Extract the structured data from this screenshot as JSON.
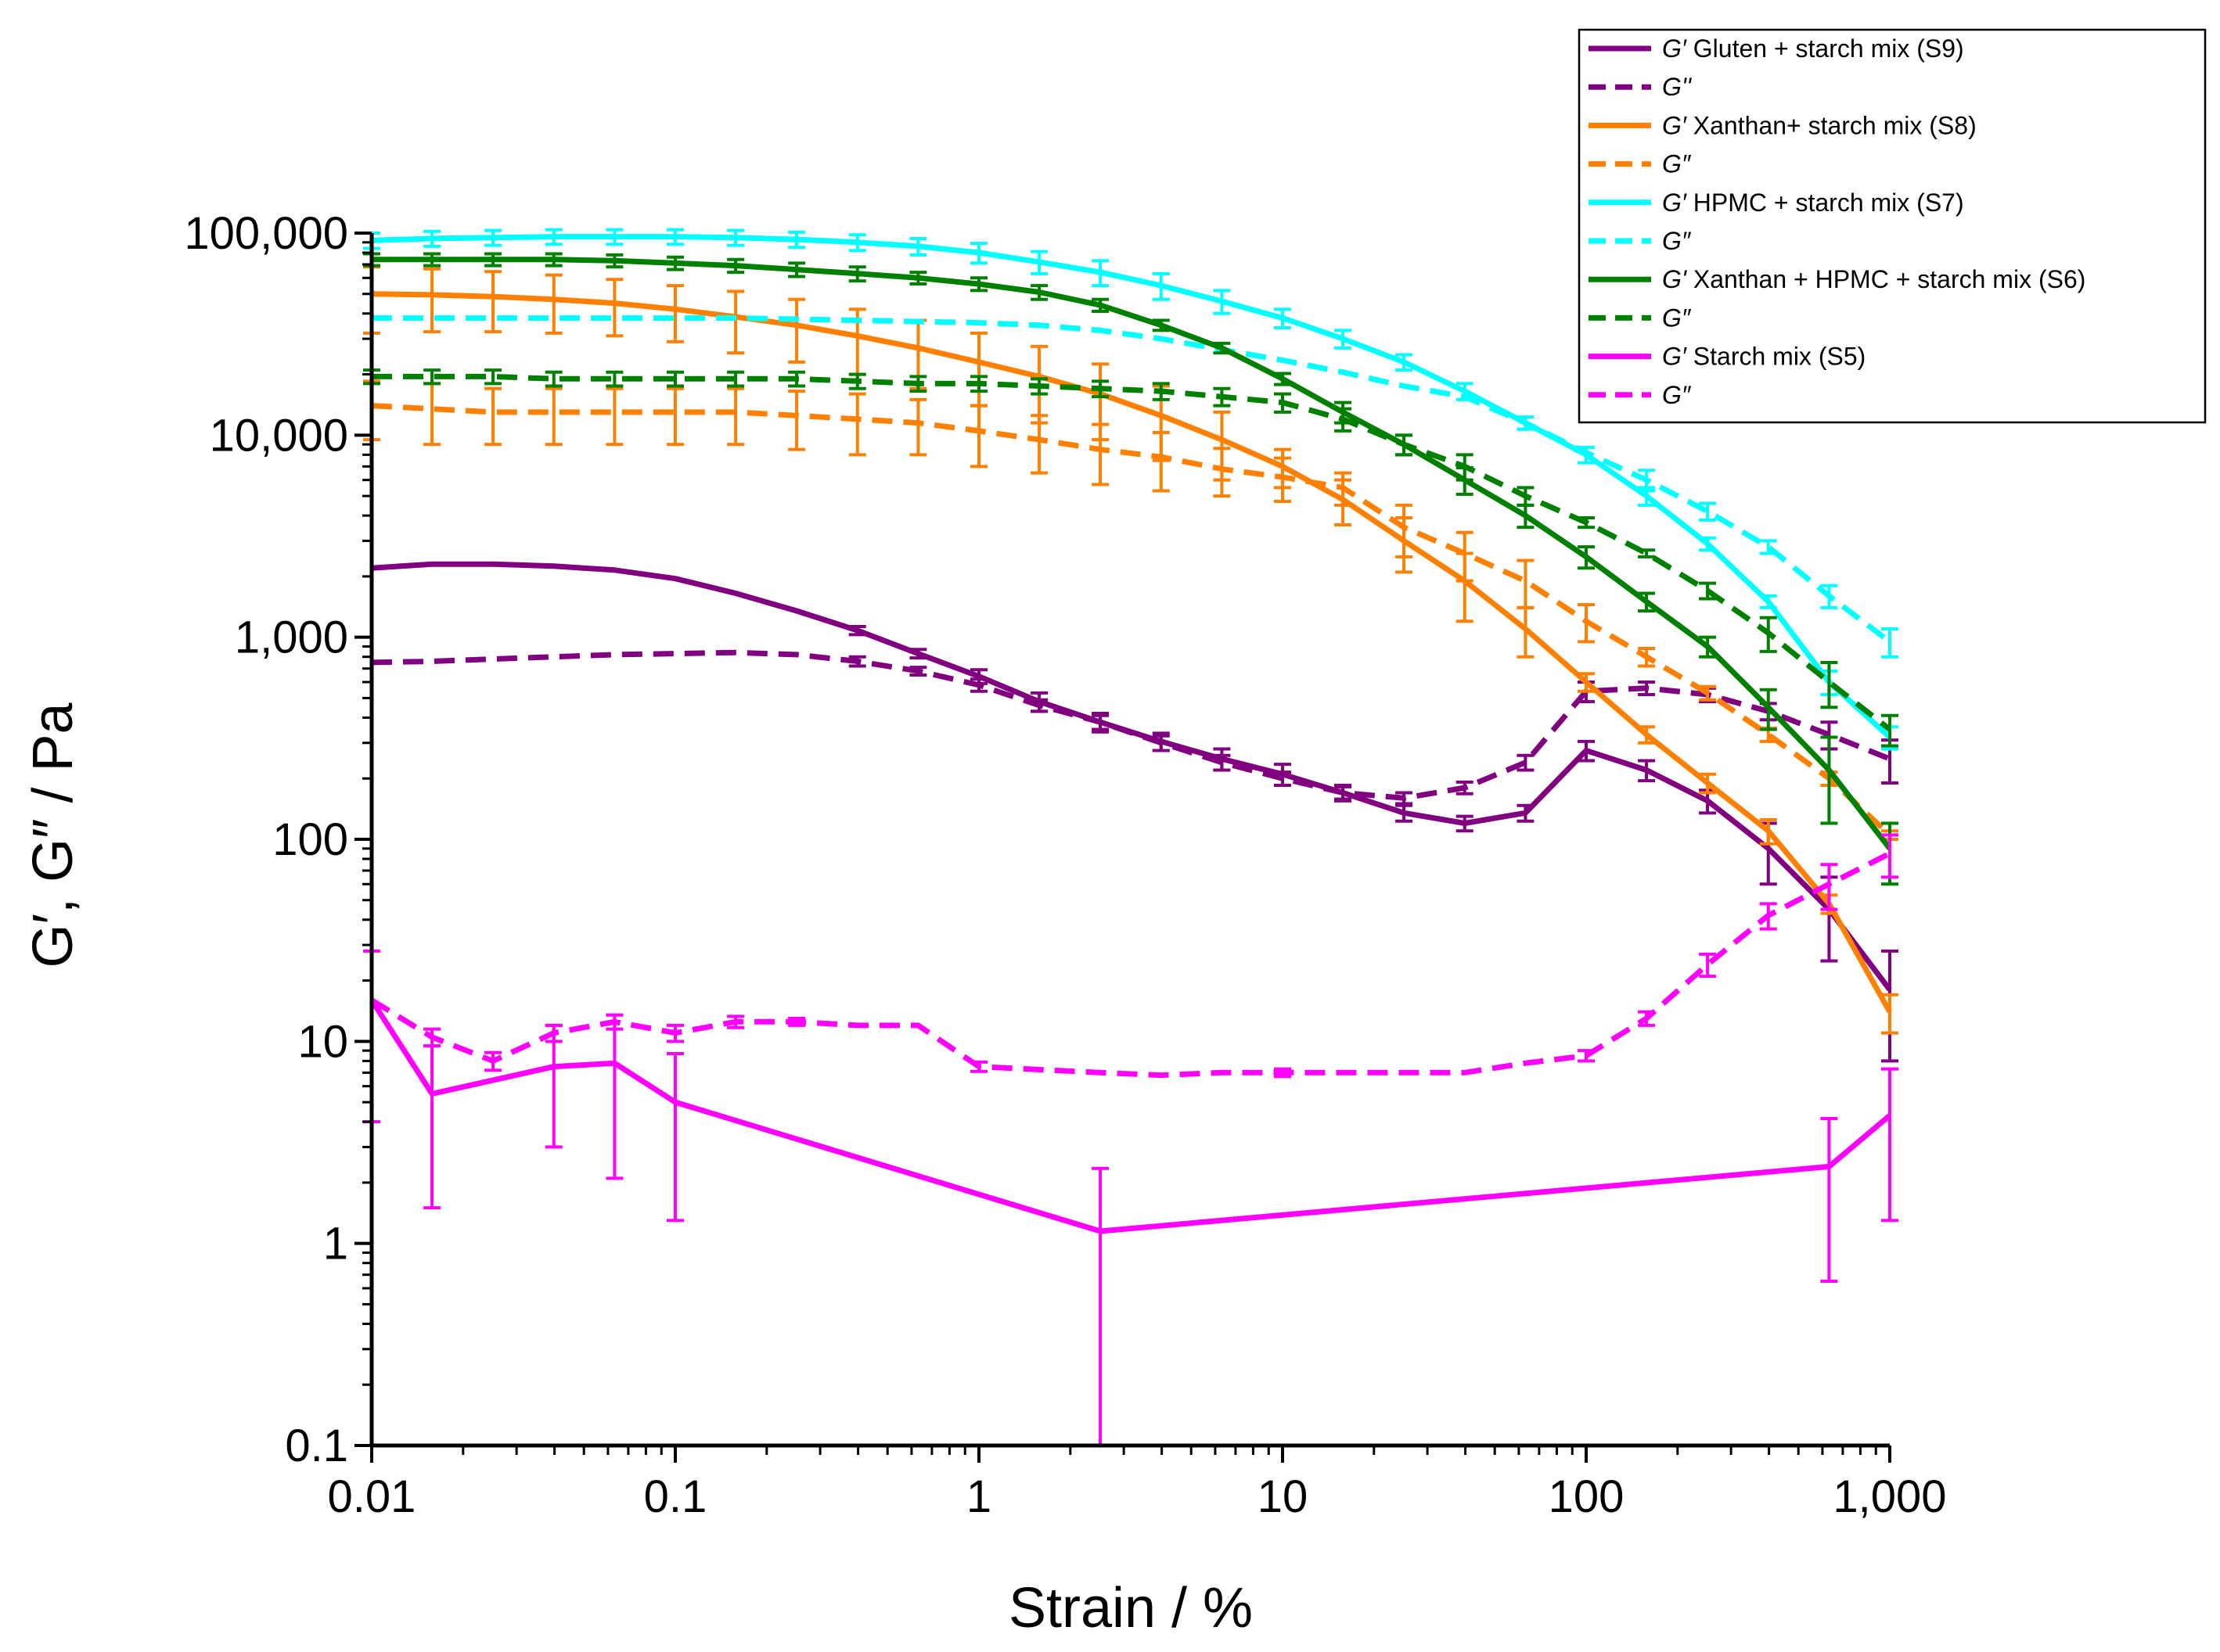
{
  "chart_data": {
    "type": "line",
    "xlabel": "Strain / %",
    "ylabel": "G′, G″ / Pa",
    "x_scale": "log",
    "y_scale": "log",
    "xlim": [
      0.01,
      1000
    ],
    "ylim": [
      0.1,
      100000
    ],
    "x_tick_labels": [
      "0.01",
      "0.1",
      "1",
      "10",
      "100",
      "1,000"
    ],
    "y_tick_labels": [
      "0.1",
      "1",
      "10",
      "100",
      "1,000",
      "10,000",
      "100,000"
    ],
    "legend_position": "top-right",
    "grid": false,
    "series": [
      {
        "name": "G′ Gluten + starch mix (S9)",
        "legend_symbol": "G′",
        "legend_text": "Gluten + starch mix (S9)",
        "color": "#800080",
        "dash": false,
        "x": [
          0.01,
          0.0158,
          0.0251,
          0.0398,
          0.0631,
          0.1,
          0.158,
          0.251,
          0.398,
          0.631,
          1,
          1.58,
          2.51,
          3.98,
          6.31,
          10,
          15.8,
          25.1,
          39.8,
          63.1,
          100,
          158,
          251,
          398,
          631,
          1000
        ],
        "y": [
          2200,
          2300,
          2300,
          2250,
          2150,
          1950,
          1650,
          1350,
          1080,
          830,
          640,
          480,
          380,
          305,
          250,
          210,
          170,
          135,
          120,
          135,
          275,
          220,
          155,
          90,
          45,
          18
        ],
        "errors": [
          0,
          0,
          0,
          0,
          0,
          0,
          0,
          0,
          50,
          40,
          50,
          50,
          40,
          30,
          30,
          25,
          15,
          12,
          10,
          12,
          30,
          25,
          20,
          30,
          20,
          10
        ]
      },
      {
        "name": "G″ Gluten + starch mix (S9)",
        "legend_symbol": "G''",
        "legend_text": "",
        "color": "#800080",
        "dash": true,
        "x": [
          0.01,
          0.0158,
          0.0251,
          0.0398,
          0.0631,
          0.1,
          0.158,
          0.251,
          0.398,
          0.631,
          1,
          1.58,
          2.51,
          3.98,
          6.31,
          10,
          15.8,
          25.1,
          39.8,
          63.1,
          100,
          158,
          251,
          398,
          631,
          1000
        ],
        "y": [
          750,
          760,
          780,
          800,
          820,
          830,
          840,
          820,
          760,
          680,
          580,
          460,
          380,
          300,
          240,
          200,
          170,
          160,
          180,
          240,
          540,
          560,
          520,
          430,
          330,
          250
        ],
        "errors": [
          0,
          0,
          0,
          0,
          0,
          0,
          0,
          0,
          40,
          30,
          40,
          30,
          30,
          25,
          20,
          15,
          12,
          10,
          12,
          20,
          60,
          40,
          40,
          40,
          50,
          60
        ]
      },
      {
        "name": "G′ Xanthan+ starch mix (S8)",
        "legend_symbol": "G′",
        "legend_text": "Xanthan+ starch mix (S8)",
        "color": "#ff8000",
        "dash": false,
        "x": [
          0.01,
          0.0158,
          0.0251,
          0.0398,
          0.0631,
          0.1,
          0.158,
          0.251,
          0.398,
          0.631,
          1,
          1.58,
          2.51,
          3.98,
          6.31,
          10,
          15.8,
          25.1,
          39.8,
          63.1,
          100,
          158,
          251,
          398,
          631,
          1000
        ],
        "y": [
          50000,
          49500,
          48500,
          47000,
          45000,
          42000,
          38500,
          35000,
          31000,
          27000,
          23000,
          19500,
          16000,
          12500,
          9500,
          7000,
          4800,
          3000,
          1900,
          1100,
          600,
          330,
          190,
          110,
          48,
          14
        ],
        "errors": [
          18000,
          17000,
          16000,
          15000,
          14000,
          13000,
          13000,
          12000,
          11000,
          10000,
          9000,
          8000,
          6500,
          5000,
          3500,
          1500,
          1200,
          900,
          700,
          300,
          60,
          30,
          20,
          15,
          5,
          3
        ]
      },
      {
        "name": "G″ Xanthan+ starch mix (S8)",
        "legend_symbol": "G″",
        "legend_text": "",
        "color": "#ff8000",
        "dash": true,
        "x": [
          0.01,
          0.0158,
          0.0251,
          0.0398,
          0.0631,
          0.1,
          0.158,
          0.251,
          0.398,
          0.631,
          1,
          1.58,
          2.51,
          3.98,
          6.31,
          10,
          15.8,
          25.1,
          39.8,
          63.1,
          100,
          158,
          251,
          398,
          631,
          1000
        ],
        "y": [
          14000,
          13500,
          13000,
          13000,
          13000,
          13000,
          13000,
          12500,
          12000,
          11500,
          10500,
          9500,
          8500,
          7800,
          6800,
          6200,
          5500,
          3500,
          2600,
          1900,
          1200,
          800,
          530,
          330,
          200,
          105
        ],
        "errors": [
          4500,
          4500,
          4000,
          4000,
          4000,
          4000,
          4000,
          4000,
          4000,
          3500,
          3500,
          3000,
          2800,
          2500,
          1800,
          1500,
          1000,
          1000,
          700,
          500,
          250,
          80,
          40,
          25,
          15,
          5
        ]
      },
      {
        "name": "G′ HPMC + starch mix (S7)",
        "legend_symbol": "G′",
        "legend_text": "HPMC + starch mix (S7)",
        "color": "#00ffff",
        "dash": false,
        "x": [
          0.01,
          0.0158,
          0.0251,
          0.0398,
          0.0631,
          0.1,
          0.158,
          0.251,
          0.398,
          0.631,
          1,
          1.58,
          2.51,
          3.98,
          6.31,
          10,
          15.8,
          25.1,
          39.8,
          63.1,
          100,
          158,
          251,
          398,
          631,
          1000
        ],
        "y": [
          92000,
          94000,
          95000,
          96000,
          96000,
          96000,
          95000,
          93000,
          90000,
          86000,
          80000,
          72000,
          64000,
          55000,
          46000,
          38000,
          30000,
          23000,
          16500,
          11500,
          8000,
          5000,
          2900,
          1500,
          600,
          320
        ],
        "errors": [
          8000,
          8000,
          8000,
          8000,
          8000,
          8000,
          8000,
          8000,
          8000,
          8000,
          9000,
          9000,
          9000,
          8000,
          6000,
          4000,
          3000,
          2000,
          1500,
          800,
          700,
          500,
          200,
          100,
          80,
          40
        ]
      },
      {
        "name": "G″ HPMC + starch mix (S7)",
        "legend_symbol": "G″",
        "legend_text": "",
        "color": "#00ffff",
        "dash": true,
        "x": [
          0.01,
          0.0158,
          0.0251,
          0.0398,
          0.0631,
          0.1,
          0.158,
          0.251,
          0.398,
          0.631,
          1,
          1.58,
          2.51,
          3.98,
          6.31,
          10,
          15.8,
          25.1,
          39.8,
          63.1,
          100,
          158,
          251,
          398,
          631,
          1000
        ],
        "y": [
          38000,
          38000,
          38000,
          38000,
          38000,
          38000,
          38000,
          37500,
          37000,
          36500,
          36000,
          35000,
          33000,
          30000,
          26500,
          23500,
          20500,
          17500,
          15500,
          11500,
          8200,
          6000,
          4200,
          2800,
          1600,
          950
        ],
        "errors": [
          0,
          0,
          0,
          0,
          0,
          0,
          0,
          0,
          0,
          0,
          0,
          0,
          0,
          0,
          0,
          0,
          0,
          0,
          0,
          0,
          0,
          700,
          400,
          200,
          200,
          150
        ]
      },
      {
        "name": "G' Xanthan + HPMC + starch mix (S6)",
        "legend_symbol": "G'",
        "legend_text": "Xanthan + HPMC + starch mix (S6)",
        "color": "#008000",
        "dash": false,
        "x": [
          0.01,
          0.0158,
          0.0251,
          0.0398,
          0.0631,
          0.1,
          0.158,
          0.251,
          0.398,
          0.631,
          1,
          1.58,
          2.51,
          3.98,
          6.31,
          10,
          15.8,
          25.1,
          39.8,
          63.1,
          100,
          158,
          251,
          398,
          631,
          1000
        ],
        "y": [
          74000,
          74000,
          74000,
          74000,
          73000,
          71000,
          69000,
          66000,
          63000,
          60000,
          56000,
          51000,
          44000,
          35000,
          27000,
          19000,
          13000,
          9000,
          6000,
          4000,
          2500,
          1500,
          900,
          450,
          220,
          90
        ],
        "errors": [
          5000,
          5000,
          5000,
          5000,
          5000,
          5000,
          5000,
          5000,
          5000,
          4000,
          4000,
          4000,
          3000,
          2000,
          1500,
          1200,
          1500,
          1000,
          900,
          500,
          300,
          150,
          100,
          100,
          100,
          30
        ]
      },
      {
        "name": "G″ Xanthan + HPMC + starch mix (S6)",
        "legend_symbol": "G″",
        "legend_text": "",
        "color": "#008000",
        "dash": true,
        "x": [
          0.01,
          0.0158,
          0.0251,
          0.0398,
          0.0631,
          0.1,
          0.158,
          0.251,
          0.398,
          0.631,
          1,
          1.58,
          2.51,
          3.98,
          6.31,
          10,
          15.8,
          25.1,
          39.8,
          63.1,
          100,
          158,
          251,
          398,
          631,
          1000
        ],
        "y": [
          19500,
          19500,
          19500,
          19000,
          19000,
          19000,
          19000,
          19000,
          18500,
          18000,
          18000,
          17500,
          17000,
          16500,
          15500,
          14500,
          12000,
          9000,
          7000,
          5000,
          3700,
          2600,
          1700,
          1050,
          600,
          350
        ],
        "errors": [
          1500,
          1500,
          1500,
          1500,
          1500,
          1500,
          1500,
          1500,
          1500,
          1500,
          1500,
          1500,
          1500,
          1500,
          1500,
          1500,
          1500,
          1000,
          1000,
          500,
          200,
          100,
          150,
          200,
          150,
          60
        ]
      },
      {
        "name": "G′ Starch mix  (S5)",
        "legend_symbol": "G′",
        "legend_text": "Starch mix  (S5)",
        "color": "#ff00ff",
        "dash": false,
        "x": [
          0.01,
          0.0158,
          0.0398,
          0.0631,
          0.1,
          2.51,
          631,
          1000
        ],
        "y": [
          16,
          5.5,
          7.5,
          7.8,
          5,
          1.15,
          2.4,
          4.3
        ],
        "errors": [
          12,
          4,
          4.5,
          5.7,
          3.7,
          1.2,
          1.75,
          3
        ]
      },
      {
        "name": "G″ Starch mix  (S5)",
        "legend_symbol": "G″",
        "legend_text": "",
        "color": "#ff00ff",
        "dash": true,
        "x": [
          0.01,
          0.0158,
          0.0251,
          0.0398,
          0.0631,
          0.1,
          0.158,
          0.251,
          0.398,
          0.631,
          1,
          2.51,
          3.98,
          6.31,
          10,
          15.8,
          25.1,
          39.8,
          63.1,
          100,
          158,
          251,
          398,
          631,
          1000
        ],
        "y": [
          16,
          10.5,
          8,
          11,
          12.5,
          11,
          12.5,
          12.5,
          12,
          12,
          7.5,
          7,
          6.8,
          7,
          7,
          7,
          7,
          7,
          7.8,
          8.5,
          13,
          24,
          42,
          60,
          85
        ],
        "errors": [
          0,
          1,
          0.8,
          1,
          1,
          1,
          0.8,
          0.5,
          0,
          0,
          0.4,
          0,
          0,
          0,
          0.3,
          0,
          0,
          0,
          0,
          0.5,
          1,
          3,
          6,
          15,
          20
        ]
      }
    ]
  }
}
